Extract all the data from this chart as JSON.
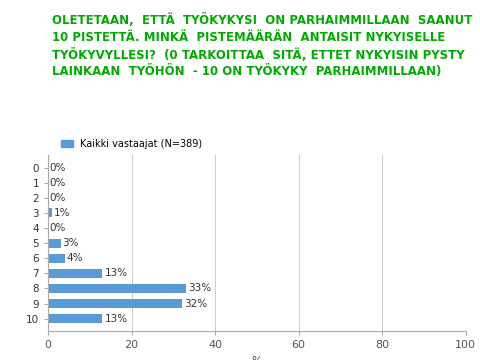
{
  "title_lines": [
    "OLETETAAN,  ETTÄ  TYÖKYKYSI  ON PARHAIMMILLAAN  SAANUT",
    "10 PISTETTÄ. MINKÄ  PISTEMÄÄRÄN  ANTAISIT NYKYISELLE",
    "TYÖKYVYLLESI?  (0 TARKOITTAA  SITÄ, ETTET NYKYISIN PYSTY",
    "LAINKAAN  TYÖHÖN  - 10 ON TYÖKYKY  PARHAIMMILLAAN)"
  ],
  "title_color": "#00aa00",
  "legend_label": "Kaikki vastaajat (N=389)",
  "bar_color": "#5b9bd5",
  "categories": [
    "0",
    "1",
    "2",
    "3",
    "4",
    "5",
    "6",
    "7",
    "8",
    "9",
    "10"
  ],
  "values": [
    0,
    0,
    0,
    1,
    0,
    3,
    4,
    13,
    33,
    32,
    13
  ],
  "labels": [
    "0%",
    "0%",
    "0%",
    "1%",
    "0%",
    "3%",
    "4%",
    "13%",
    "33%",
    "32%",
    "13%"
  ],
  "xlabel": "%",
  "xlim": [
    0,
    100
  ],
  "xticks": [
    0,
    20,
    40,
    60,
    80,
    100
  ],
  "background_color": "#ffffff",
  "grid_color": "#cccccc",
  "label_fontsize": 7.5,
  "axis_fontsize": 8,
  "bar_label_fontsize": 7.5,
  "title_fontsize": 8.5
}
